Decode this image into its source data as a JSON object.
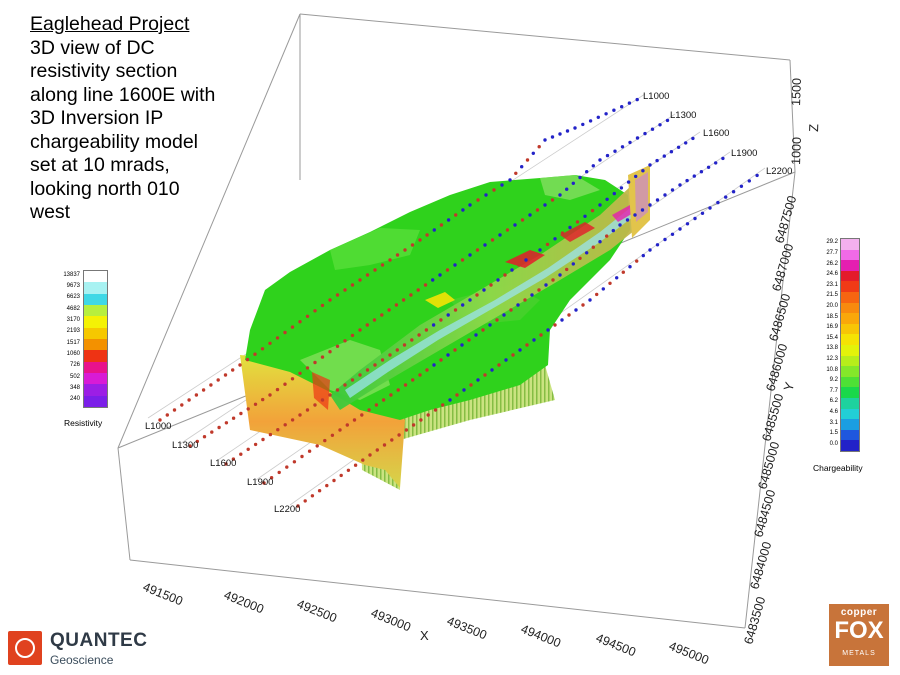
{
  "title": {
    "heading": "Eaglehead Project",
    "lines": [
      "3D view of DC",
      "resistivity section",
      "along line 1600E with",
      "3D Inversion IP",
      "chargeability model",
      "set at 10 mrads,",
      "looking north 010",
      "west"
    ]
  },
  "resistivity_legend": {
    "caption": "Resistivity",
    "labels": [
      "13837",
      "9673",
      "6623",
      "4682",
      "3170",
      "2193",
      "1517",
      "1060",
      "726",
      "502",
      "348",
      "240"
    ],
    "colors": [
      "#ffffff",
      "#a8f2f2",
      "#3fd8e6",
      "#b7ef3e",
      "#f4f205",
      "#f6c800",
      "#f39100",
      "#ee3314",
      "#e8128c",
      "#d81bd6",
      "#9c1ee5",
      "#7b1fe8"
    ]
  },
  "chargeability_legend": {
    "caption": "Chargeability",
    "labels": [
      "29.2",
      "27.7",
      "26.2",
      "24.6",
      "23.1",
      "21.5",
      "20.0",
      "18.5",
      "16.9",
      "15.4",
      "13.8",
      "12.3",
      "10.8",
      "9.2",
      "7.7",
      "6.2",
      "4.6",
      "3.1",
      "1.5",
      "0.0"
    ],
    "colors": [
      "#f3b0ef",
      "#f06ae6",
      "#e51fb0",
      "#e41b2a",
      "#f03a16",
      "#f76511",
      "#f88a0e",
      "#f9a70a",
      "#f7c506",
      "#f5e304",
      "#e3f30a",
      "#b7ee1b",
      "#84e82a",
      "#4ee035",
      "#1ad84a",
      "#1ed29e",
      "#22cfd6",
      "#1b9ee2",
      "#1f57dd",
      "#2222c8"
    ]
  },
  "x_axis": {
    "title": "X",
    "ticks": [
      "491500",
      "492000",
      "492500",
      "493000",
      "493500",
      "494000",
      "494500",
      "495000"
    ]
  },
  "y_axis": {
    "title": "Y",
    "ticks": [
      "6483500",
      "6484000",
      "6484500",
      "6485000",
      "6485500",
      "6486000",
      "6486500",
      "6487000",
      "6487500"
    ]
  },
  "z_axis": {
    "title": "Z",
    "ticks": [
      "1000",
      "1500"
    ]
  },
  "survey_lines": {
    "front_labels": [
      "L1000",
      "L1300",
      "L1600",
      "L1900",
      "L2200"
    ],
    "back_labels": [
      "L1000",
      "L1300",
      "L1600",
      "L1900",
      "L2200"
    ]
  },
  "colors": {
    "body_green": "#2fd21c",
    "line_red": "#c0392b",
    "line_blue": "#2323c8",
    "box": "#999999"
  },
  "logos": {
    "quantec_name": "QUANTEC",
    "quantec_sub": "Geoscience",
    "copperfox_top": "copper",
    "copperfox_mid": "FOX",
    "copperfox_bottom": "METALS"
  }
}
